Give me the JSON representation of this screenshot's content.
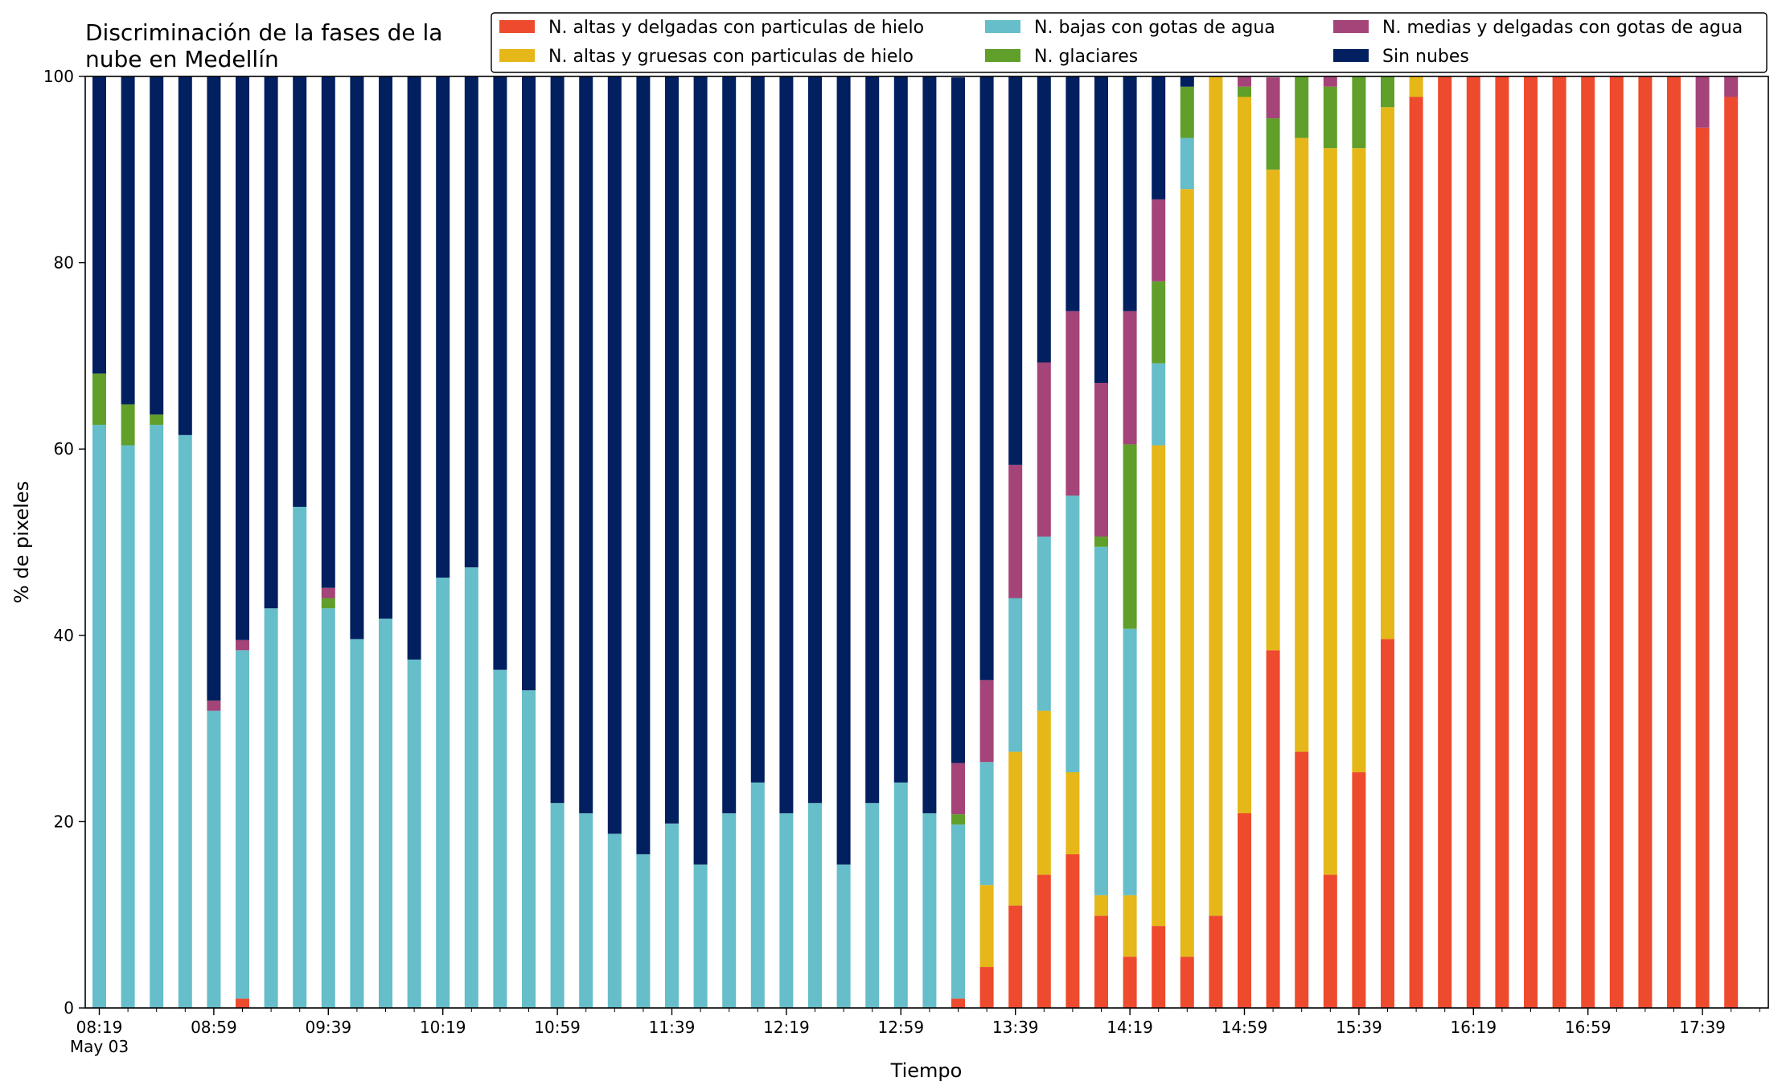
{
  "chart_data": {
    "type": "bar",
    "stacked": true,
    "title_lines": [
      "Discriminación de la fases de la",
      "nube en Medellín"
    ],
    "xlabel": "Tiempo",
    "ylabel": "% de pixeles",
    "ylim": [
      0,
      100
    ],
    "yticks": [
      0,
      20,
      40,
      60,
      80,
      100
    ],
    "grid": false,
    "legend_position": "top-right",
    "x_tick_labels": [
      {
        "index": 0,
        "label": "08:19",
        "sublabel": "May 03"
      },
      {
        "index": 4,
        "label": "08:59"
      },
      {
        "index": 8,
        "label": "09:39"
      },
      {
        "index": 12,
        "label": "10:19"
      },
      {
        "index": 16,
        "label": "10:59"
      },
      {
        "index": 20,
        "label": "11:39"
      },
      {
        "index": 24,
        "label": "12:19"
      },
      {
        "index": 28,
        "label": "12:59"
      },
      {
        "index": 32,
        "label": "13:39"
      },
      {
        "index": 36,
        "label": "14:19"
      },
      {
        "index": 40,
        "label": "14:59"
      },
      {
        "index": 44,
        "label": "15:39"
      },
      {
        "index": 48,
        "label": "16:19"
      },
      {
        "index": 52,
        "label": "16:59"
      },
      {
        "index": 56,
        "label": "17:39"
      }
    ],
    "series": [
      {
        "name": "N. altas y delgadas con particulas de hielo",
        "color": "#ee4a2d",
        "values": [
          0,
          0,
          0,
          0,
          0,
          1,
          0,
          0,
          0,
          0,
          0,
          0,
          0,
          0,
          0,
          0,
          0,
          0,
          0,
          0,
          0,
          0,
          0,
          0,
          0,
          0,
          0,
          0,
          0,
          0,
          1,
          4.4,
          11,
          14.3,
          16.5,
          9.9,
          5.5,
          8.8,
          5.5,
          9.9,
          20.9,
          38.4,
          27.5,
          14.3,
          25.3,
          39.6,
          97.8,
          100,
          100,
          100,
          100,
          100,
          100,
          100,
          100,
          100,
          94.5,
          97.8
        ]
      },
      {
        "name": "N. altas y gruesas con particulas de hielo",
        "color": "#e5b718",
        "values": [
          0,
          0,
          0,
          0,
          0,
          0,
          0,
          0,
          0,
          0,
          0,
          0,
          0,
          0,
          0,
          0,
          0,
          0,
          0,
          0,
          0,
          0,
          0,
          0,
          0,
          0,
          0,
          0,
          0,
          0,
          0,
          8.8,
          16.5,
          17.6,
          8.8,
          2.2,
          6.6,
          51.6,
          82.4,
          90.1,
          76.9,
          51.6,
          65.9,
          78,
          67,
          57.1,
          2.2,
          0,
          0,
          0,
          0,
          0,
          0,
          0,
          0,
          0,
          0,
          0
        ]
      },
      {
        "name": "N. bajas con gotas de agua",
        "color": "#65bec9",
        "values": [
          62.6,
          60.4,
          62.6,
          61.5,
          31.9,
          37.4,
          42.9,
          53.8,
          42.9,
          39.6,
          41.8,
          37.4,
          46.2,
          47.3,
          36.3,
          34.1,
          22,
          20.9,
          18.7,
          16.5,
          19.8,
          15.4,
          20.9,
          24.2,
          20.9,
          22,
          15.4,
          22,
          24.2,
          20.9,
          18.7,
          13.2,
          16.5,
          18.7,
          29.7,
          37.4,
          28.6,
          8.8,
          5.5,
          0,
          0,
          0,
          0,
          0,
          0,
          0,
          0,
          0,
          0,
          0,
          0,
          0,
          0,
          0,
          0,
          0,
          0,
          0
        ]
      },
      {
        "name": "N. glaciares",
        "color": "#5f9f2a",
        "values": [
          5.5,
          4.4,
          1.1,
          0,
          0,
          0,
          0,
          0,
          1.1,
          0,
          0,
          0,
          0,
          0,
          0,
          0,
          0,
          0,
          0,
          0,
          0,
          0,
          0,
          0,
          0,
          0,
          0,
          0,
          0,
          0,
          1.1,
          0,
          0,
          0,
          0,
          1.1,
          19.8,
          8.8,
          5.5,
          0,
          1.1,
          5.5,
          6.6,
          6.6,
          7.7,
          3.3,
          0,
          0,
          0,
          0,
          0,
          0,
          0,
          0,
          0,
          0,
          0,
          0
        ]
      },
      {
        "name": "N. medias y delgadas con gotas de agua",
        "color": "#a44478",
        "values": [
          0,
          0,
          0,
          0,
          1.1,
          1.1,
          0,
          0,
          1.1,
          0,
          0,
          0,
          0,
          0,
          0,
          0,
          0,
          0,
          0,
          0,
          0,
          0,
          0,
          0,
          0,
          0,
          0,
          0,
          0,
          0,
          5.5,
          8.8,
          14.3,
          18.7,
          19.8,
          16.5,
          14.3,
          8.8,
          0,
          0,
          1.1,
          4.4,
          0,
          1.1,
          0,
          0,
          0,
          0,
          0,
          0,
          0,
          0,
          0,
          0,
          0,
          0,
          5.5,
          2.2
        ]
      },
      {
        "name": "Sin nubes",
        "color": "#021f5f",
        "values": [
          31.9,
          35.2,
          36.3,
          38.5,
          67,
          60.5,
          57.1,
          46.2,
          54.9,
          60.4,
          58.2,
          62.6,
          53.8,
          52.7,
          63.7,
          65.9,
          78,
          79.1,
          81.3,
          83.5,
          80.2,
          84.6,
          79.1,
          75.8,
          79.1,
          78,
          84.6,
          78,
          75.8,
          79.1,
          73.6,
          64.8,
          41.7,
          30.7,
          25.2,
          33,
          25.2,
          13.2,
          1.1,
          0,
          0,
          0,
          0,
          0,
          0,
          0,
          0,
          0,
          0,
          0,
          0,
          0,
          0,
          0,
          0,
          0,
          0,
          0
        ]
      }
    ]
  }
}
